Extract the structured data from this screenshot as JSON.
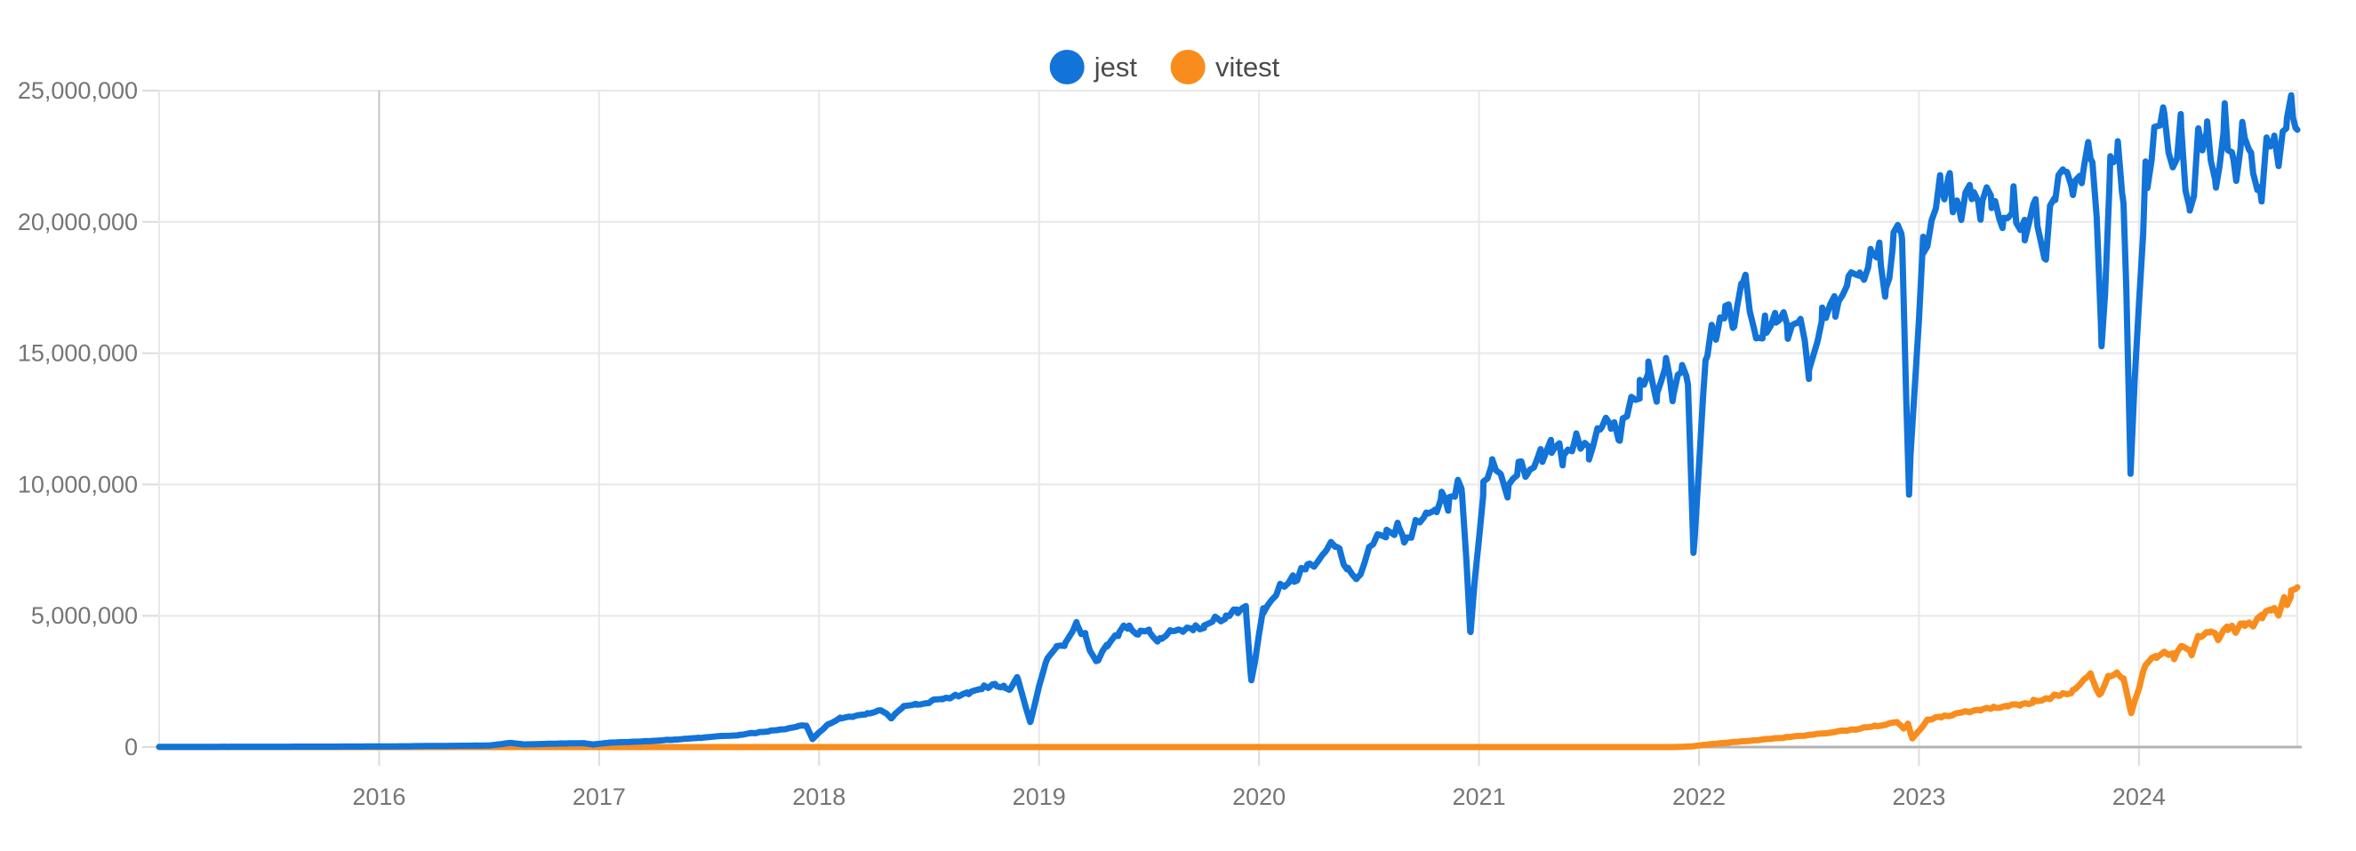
{
  "page": {
    "background": "#ffffff"
  },
  "legend": {
    "items": [
      {
        "label": "jest",
        "color": "#1273d8"
      },
      {
        "label": "vitest",
        "color": "#f88d1d"
      }
    ]
  },
  "chart_data": {
    "type": "line",
    "title": "",
    "xlabel": "",
    "ylabel": "",
    "legend_position": "top-center",
    "grid": true,
    "x_domain": [
      2015.0,
      2024.72
    ],
    "ylim": [
      0,
      25000000
    ],
    "x_ticks": [
      2016,
      2017,
      2018,
      2019,
      2020,
      2021,
      2022,
      2023,
      2024
    ],
    "y_ticks": [
      0,
      5000000,
      10000000,
      15000000,
      20000000,
      25000000
    ],
    "colors": {
      "axis_label": "#757575",
      "gridline": "#e8e8e8",
      "gridline_2016": "#c4c4c4",
      "baseline": "#b3b3b3",
      "tick_stub": "#dcdcdc"
    },
    "value_unit": "weekly npm downloads",
    "series": [
      {
        "name": "jest",
        "color": "#1273d8",
        "noise": 0.03,
        "points": [
          [
            2015.0,
            10000
          ],
          [
            2015.3,
            12000
          ],
          [
            2015.6,
            15000
          ],
          [
            2015.9,
            20000
          ],
          [
            2016.1,
            30000
          ],
          [
            2016.3,
            45000
          ],
          [
            2016.5,
            60000
          ],
          [
            2016.6,
            160000
          ],
          [
            2016.66,
            100000
          ],
          [
            2016.75,
            120000
          ],
          [
            2016.85,
            140000
          ],
          [
            2016.93,
            150000
          ],
          [
            2016.97,
            100000
          ],
          [
            2017.05,
            170000
          ],
          [
            2017.15,
            200000
          ],
          [
            2017.25,
            240000
          ],
          [
            2017.35,
            290000
          ],
          [
            2017.45,
            350000
          ],
          [
            2017.55,
            420000
          ],
          [
            2017.63,
            450000
          ],
          [
            2017.7,
            540000
          ],
          [
            2017.78,
            620000
          ],
          [
            2017.85,
            700000
          ],
          [
            2017.9,
            780000
          ],
          [
            2017.94,
            850000
          ],
          [
            2017.97,
            310000
          ],
          [
            2018.04,
            880000
          ],
          [
            2018.1,
            1100000
          ],
          [
            2018.16,
            1200000
          ],
          [
            2018.22,
            1280000
          ],
          [
            2018.28,
            1450000
          ],
          [
            2018.33,
            1100000
          ],
          [
            2018.38,
            1550000
          ],
          [
            2018.44,
            1620000
          ],
          [
            2018.5,
            1720000
          ],
          [
            2018.56,
            1850000
          ],
          [
            2018.62,
            1950000
          ],
          [
            2018.68,
            2100000
          ],
          [
            2018.74,
            2250000
          ],
          [
            2018.8,
            2400000
          ],
          [
            2018.84,
            2300000
          ],
          [
            2018.87,
            2200000
          ],
          [
            2018.9,
            2740000
          ],
          [
            2018.96,
            950000
          ],
          [
            2019.03,
            3300000
          ],
          [
            2019.08,
            3800000
          ],
          [
            2019.12,
            4000000
          ],
          [
            2019.17,
            4650000
          ],
          [
            2019.21,
            4300000
          ],
          [
            2019.26,
            3200000
          ],
          [
            2019.31,
            3900000
          ],
          [
            2019.36,
            4400000
          ],
          [
            2019.41,
            4650000
          ],
          [
            2019.45,
            4300000
          ],
          [
            2019.5,
            4450000
          ],
          [
            2019.55,
            4100000
          ],
          [
            2019.6,
            4400000
          ],
          [
            2019.65,
            4550000
          ],
          [
            2019.7,
            4500000
          ],
          [
            2019.75,
            4700000
          ],
          [
            2019.8,
            4900000
          ],
          [
            2019.85,
            5000000
          ],
          [
            2019.9,
            5250000
          ],
          [
            2019.94,
            5350000
          ],
          [
            2019.965,
            2500000
          ],
          [
            2020.02,
            5200000
          ],
          [
            2020.08,
            5900000
          ],
          [
            2020.16,
            6500000
          ],
          [
            2020.22,
            6900000
          ],
          [
            2020.3,
            7500000
          ],
          [
            2020.35,
            7700000
          ],
          [
            2020.4,
            6900000
          ],
          [
            2020.45,
            6300000
          ],
          [
            2020.5,
            7700000
          ],
          [
            2020.58,
            8200000
          ],
          [
            2020.63,
            8500000
          ],
          [
            2020.66,
            7900000
          ],
          [
            2020.71,
            8600000
          ],
          [
            2020.76,
            8900000
          ],
          [
            2020.8,
            9200000
          ],
          [
            2020.83,
            9700000
          ],
          [
            2020.86,
            9200000
          ],
          [
            2020.89,
            9900000
          ],
          [
            2020.92,
            10200000
          ],
          [
            2020.96,
            4400000
          ],
          [
            2021.02,
            9900000
          ],
          [
            2021.06,
            10900000
          ],
          [
            2021.1,
            10600000
          ],
          [
            2021.13,
            9600000
          ],
          [
            2021.18,
            11000000
          ],
          [
            2021.22,
            10400000
          ],
          [
            2021.28,
            11300000
          ],
          [
            2021.33,
            11600000
          ],
          [
            2021.38,
            11100000
          ],
          [
            2021.44,
            11900000
          ],
          [
            2021.5,
            11300000
          ],
          [
            2021.55,
            12200000
          ],
          [
            2021.6,
            12500000
          ],
          [
            2021.64,
            12000000
          ],
          [
            2021.68,
            13000000
          ],
          [
            2021.73,
            13800000
          ],
          [
            2021.77,
            14300000
          ],
          [
            2021.81,
            13600000
          ],
          [
            2021.85,
            14800000
          ],
          [
            2021.88,
            13200000
          ],
          [
            2021.92,
            15000000
          ],
          [
            2021.95,
            13800000
          ],
          [
            2021.975,
            7400000
          ],
          [
            2022.03,
            15100000
          ],
          [
            2022.08,
            16000000
          ],
          [
            2022.12,
            17100000
          ],
          [
            2022.16,
            16000000
          ],
          [
            2022.2,
            18300000
          ],
          [
            2022.26,
            15600000
          ],
          [
            2022.3,
            16200000
          ],
          [
            2022.35,
            16400000
          ],
          [
            2022.4,
            16100000
          ],
          [
            2022.45,
            16400000
          ],
          [
            2022.5,
            14600000
          ],
          [
            2022.56,
            16400000
          ],
          [
            2022.62,
            17000000
          ],
          [
            2022.68,
            17800000
          ],
          [
            2022.73,
            18300000
          ],
          [
            2022.78,
            18600000
          ],
          [
            2022.82,
            18900000
          ],
          [
            2022.85,
            17500000
          ],
          [
            2022.88,
            19300000
          ],
          [
            2022.92,
            20000000
          ],
          [
            2022.955,
            9900000
          ],
          [
            2023.02,
            19300000
          ],
          [
            2023.06,
            20500000
          ],
          [
            2023.1,
            21500000
          ],
          [
            2023.14,
            21700000
          ],
          [
            2023.18,
            20500000
          ],
          [
            2023.24,
            21400000
          ],
          [
            2023.28,
            20300000
          ],
          [
            2023.33,
            21200000
          ],
          [
            2023.38,
            20000000
          ],
          [
            2023.43,
            21000000
          ],
          [
            2023.48,
            19700000
          ],
          [
            2023.53,
            21000000
          ],
          [
            2023.57,
            18800000
          ],
          [
            2023.62,
            21400000
          ],
          [
            2023.66,
            22300000
          ],
          [
            2023.7,
            21000000
          ],
          [
            2023.74,
            22500000
          ],
          [
            2023.78,
            23200000
          ],
          [
            2023.81,
            20000000
          ],
          [
            2023.83,
            15500000
          ],
          [
            2023.87,
            22200000
          ],
          [
            2023.9,
            22700000
          ],
          [
            2023.93,
            21500000
          ],
          [
            2023.962,
            10600000
          ],
          [
            2024.03,
            21900000
          ],
          [
            2024.07,
            23300000
          ],
          [
            2024.11,
            24400000
          ],
          [
            2024.15,
            22300000
          ],
          [
            2024.19,
            23800000
          ],
          [
            2024.23,
            20600000
          ],
          [
            2024.27,
            23200000
          ],
          [
            2024.31,
            23600000
          ],
          [
            2024.35,
            21700000
          ],
          [
            2024.39,
            23900000
          ],
          [
            2024.43,
            22200000
          ],
          [
            2024.47,
            23300000
          ],
          [
            2024.51,
            22700000
          ],
          [
            2024.55,
            21000000
          ],
          [
            2024.58,
            22900000
          ],
          [
            2024.61,
            23200000
          ],
          [
            2024.64,
            22500000
          ],
          [
            2024.67,
            24100000
          ],
          [
            2024.7,
            24600000
          ],
          [
            2024.72,
            23400000
          ]
        ]
      },
      {
        "name": "vitest",
        "color": "#f88d1d",
        "noise": 0.035,
        "points": [
          [
            2015.0,
            0
          ],
          [
            2016.0,
            0
          ],
          [
            2017.0,
            0
          ],
          [
            2018.0,
            0
          ],
          [
            2019.0,
            0
          ],
          [
            2020.0,
            0
          ],
          [
            2021.0,
            0
          ],
          [
            2021.88,
            0
          ],
          [
            2021.92,
            10000
          ],
          [
            2021.97,
            30000
          ],
          [
            2022.02,
            80000
          ],
          [
            2022.1,
            150000
          ],
          [
            2022.2,
            220000
          ],
          [
            2022.3,
            300000
          ],
          [
            2022.4,
            380000
          ],
          [
            2022.5,
            460000
          ],
          [
            2022.6,
            560000
          ],
          [
            2022.7,
            680000
          ],
          [
            2022.8,
            800000
          ],
          [
            2022.85,
            880000
          ],
          [
            2022.9,
            950000
          ],
          [
            2022.93,
            720000
          ],
          [
            2022.95,
            900000
          ],
          [
            2022.97,
            330000
          ],
          [
            2023.04,
            1050000
          ],
          [
            2023.1,
            1150000
          ],
          [
            2023.16,
            1280000
          ],
          [
            2023.22,
            1350000
          ],
          [
            2023.28,
            1440000
          ],
          [
            2023.34,
            1520000
          ],
          [
            2023.4,
            1580000
          ],
          [
            2023.46,
            1660000
          ],
          [
            2023.52,
            1750000
          ],
          [
            2023.58,
            1880000
          ],
          [
            2023.64,
            2000000
          ],
          [
            2023.7,
            2150000
          ],
          [
            2023.75,
            2550000
          ],
          [
            2023.78,
            2850000
          ],
          [
            2023.82,
            1950000
          ],
          [
            2023.86,
            2700000
          ],
          [
            2023.9,
            2850000
          ],
          [
            2023.93,
            2600000
          ],
          [
            2023.965,
            1300000
          ],
          [
            2024.03,
            3150000
          ],
          [
            2024.08,
            3500000
          ],
          [
            2024.12,
            3650000
          ],
          [
            2024.16,
            3450000
          ],
          [
            2024.2,
            4000000
          ],
          [
            2024.24,
            3600000
          ],
          [
            2024.28,
            4300000
          ],
          [
            2024.32,
            4450000
          ],
          [
            2024.36,
            4150000
          ],
          [
            2024.4,
            4600000
          ],
          [
            2024.44,
            4400000
          ],
          [
            2024.48,
            4850000
          ],
          [
            2024.52,
            4650000
          ],
          [
            2024.56,
            5000000
          ],
          [
            2024.6,
            5300000
          ],
          [
            2024.63,
            5100000
          ],
          [
            2024.66,
            5600000
          ],
          [
            2024.69,
            5900000
          ],
          [
            2024.72,
            6200000
          ]
        ]
      }
    ]
  }
}
